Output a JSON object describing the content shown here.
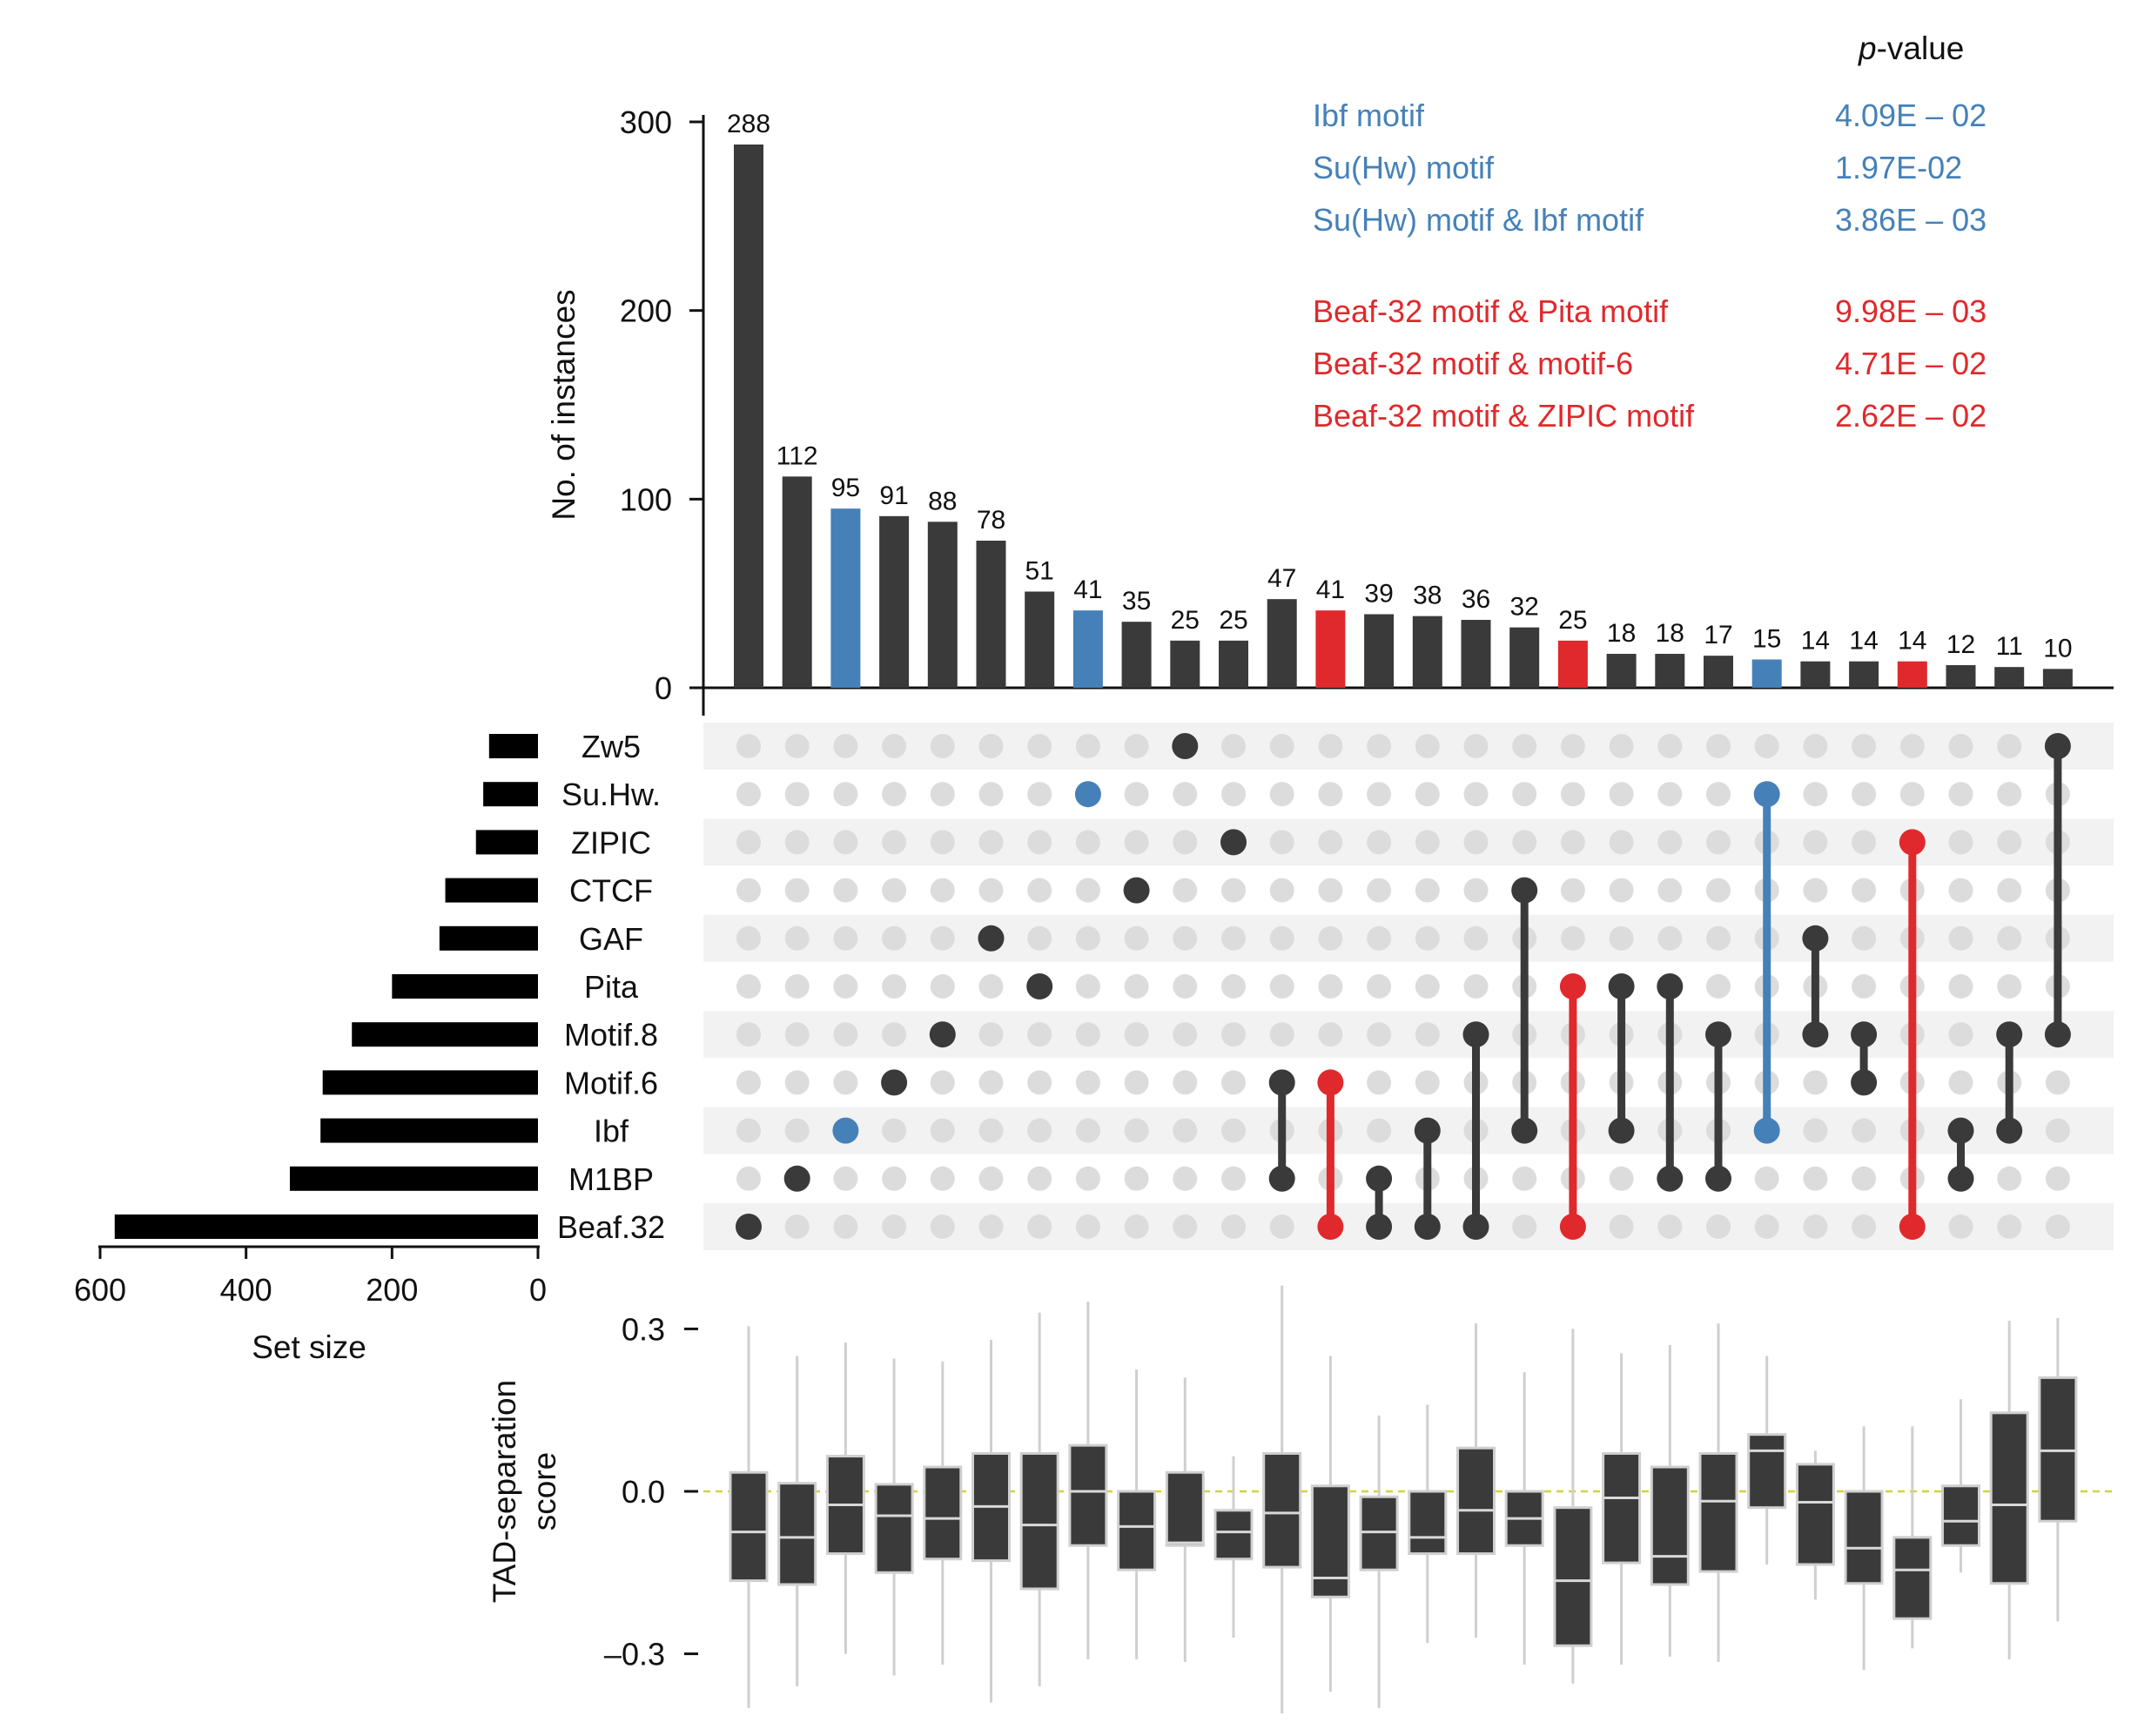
{
  "colors": {
    "dark": "#3a3a3a",
    "blue": "#4581b8",
    "red": "#e0292c",
    "dot_inactive": "#dcdcdc",
    "row_band": "#f2f2f2",
    "zero_line": "#cfd43a"
  },
  "pvalue_header": {
    "italic": "p",
    "rest": "-value"
  },
  "pvalue_table": [
    {
      "label": "Ibf motif",
      "value": "4.09E – 02",
      "color": "blue"
    },
    {
      "label": "Su(Hw) motif",
      "value": "1.97E-02",
      "color": "blue"
    },
    {
      "label": "Su(Hw) motif & Ibf motif",
      "value": "3.86E – 03",
      "color": "blue"
    },
    {
      "label": "Beaf-32 motif & Pita motif",
      "value": "9.98E – 03",
      "color": "red"
    },
    {
      "label": "Beaf-32 motif & motif-6",
      "value": "4.71E – 02",
      "color": "red"
    },
    {
      "label": "Beaf-32 motif & ZIPIC motif",
      "value": "2.62E – 02",
      "color": "red"
    }
  ],
  "chart_data": [
    {
      "type": "bar",
      "ylabel": "No. of instances",
      "ylim": [
        0,
        300
      ],
      "yticks": [
        "0",
        "100",
        "200",
        "300"
      ],
      "values": [
        288,
        112,
        95,
        91,
        88,
        78,
        51,
        41,
        35,
        25,
        25,
        47,
        41,
        39,
        38,
        36,
        32,
        25,
        18,
        18,
        17,
        15,
        14,
        14,
        14,
        12,
        11,
        10
      ],
      "labels": [
        "288",
        "112",
        "95",
        "91",
        "88",
        "78",
        "51",
        "41",
        "35",
        "25",
        "25",
        "47",
        "41",
        "39",
        "38",
        "36",
        "32",
        "25",
        "18",
        "18",
        "17",
        "15",
        "14",
        "14",
        "14",
        "12",
        "11",
        "10"
      ],
      "colors": [
        "dark",
        "dark",
        "blue",
        "dark",
        "dark",
        "dark",
        "dark",
        "blue",
        "dark",
        "dark",
        "dark",
        "dark",
        "red",
        "dark",
        "dark",
        "dark",
        "dark",
        "red",
        "dark",
        "dark",
        "dark",
        "blue",
        "dark",
        "dark",
        "red",
        "dark",
        "dark",
        "dark"
      ]
    },
    {
      "type": "upset_matrix",
      "sets": [
        "Zw5",
        "Su.Hw.",
        "ZIPIC",
        "CTCF",
        "GAF",
        "Pita",
        "Motif.8",
        "Motif.6",
        "Ibf",
        "M1BP",
        "Beaf.32"
      ],
      "intersections": [
        [
          "Beaf.32"
        ],
        [
          "M1BP"
        ],
        [
          "Ibf"
        ],
        [
          "Motif.6"
        ],
        [
          "Motif.8"
        ],
        [
          "GAF"
        ],
        [
          "Pita"
        ],
        [
          "Su.Hw."
        ],
        [
          "CTCF"
        ],
        [
          "Zw5"
        ],
        [
          "ZIPIC"
        ],
        [
          "Motif.6",
          "M1BP"
        ],
        [
          "Motif.6",
          "Beaf.32"
        ],
        [
          "M1BP",
          "Beaf.32"
        ],
        [
          "Ibf",
          "Beaf.32"
        ],
        [
          "Motif.8",
          "Beaf.32"
        ],
        [
          "CTCF",
          "Ibf"
        ],
        [
          "Pita",
          "Beaf.32"
        ],
        [
          "Pita",
          "Ibf"
        ],
        [
          "Pita",
          "M1BP"
        ],
        [
          "Motif.8",
          "M1BP"
        ],
        [
          "Su.Hw.",
          "Ibf"
        ],
        [
          "GAF",
          "Motif.8"
        ],
        [
          "Motif.8",
          "Motif.6"
        ],
        [
          "ZIPIC",
          "Beaf.32"
        ],
        [
          "Ibf",
          "M1BP"
        ],
        [
          "Motif.8",
          "Ibf"
        ],
        [
          "Zw5",
          "Motif.8"
        ]
      ]
    },
    {
      "type": "bar",
      "orientation": "horizontal",
      "xlabel": "Set size",
      "xlim": [
        600,
        0
      ],
      "xticks": [
        "600",
        "400",
        "200",
        "0"
      ],
      "categories": [
        "Zw5",
        "Su.Hw.",
        "ZIPIC",
        "CTCF",
        "GAF",
        "Pita",
        "Motif.8",
        "Motif.6",
        "Ibf",
        "M1BP",
        "Beaf.32"
      ],
      "values": [
        67,
        75,
        85,
        127,
        135,
        200,
        255,
        295,
        298,
        340,
        580
      ]
    },
    {
      "type": "box",
      "ylabel": "TAD-separation score",
      "ylim": [
        -0.37,
        0.35
      ],
      "yticks": [
        "0.3",
        "0.0",
        "–0.3"
      ],
      "reference_line": 0.0,
      "boxes": [
        {
          "q1": -0.165,
          "median": -0.075,
          "q3": 0.035,
          "whisker_low": -0.4,
          "whisker_high": 0.305
        },
        {
          "q1": -0.172,
          "median": -0.085,
          "q3": 0.015,
          "whisker_low": -0.36,
          "whisker_high": 0.25
        },
        {
          "q1": -0.115,
          "median": -0.025,
          "q3": 0.065,
          "whisker_low": -0.3,
          "whisker_high": 0.275
        },
        {
          "q1": -0.15,
          "median": -0.045,
          "q3": 0.013,
          "whisker_low": -0.34,
          "whisker_high": 0.245
        },
        {
          "q1": -0.125,
          "median": -0.05,
          "q3": 0.045,
          "whisker_low": -0.32,
          "whisker_high": 0.24
        },
        {
          "q1": -0.128,
          "median": -0.028,
          "q3": 0.07,
          "whisker_low": -0.39,
          "whisker_high": 0.28
        },
        {
          "q1": -0.18,
          "median": -0.062,
          "q3": 0.07,
          "whisker_low": -0.36,
          "whisker_high": 0.33
        },
        {
          "q1": -0.1,
          "median": 0.0,
          "q3": 0.085,
          "whisker_low": -0.31,
          "whisker_high": 0.35
        },
        {
          "q1": -0.145,
          "median": -0.065,
          "q3": 0.0,
          "whisker_low": -0.31,
          "whisker_high": 0.225
        },
        {
          "q1": -0.1,
          "median": -0.095,
          "q3": 0.035,
          "whisker_low": -0.315,
          "whisker_high": 0.21
        },
        {
          "q1": -0.125,
          "median": -0.075,
          "q3": -0.035,
          "whisker_low": -0.27,
          "whisker_high": 0.065
        },
        {
          "q1": -0.14,
          "median": -0.04,
          "q3": 0.07,
          "whisker_low": -0.41,
          "whisker_high": 0.38
        },
        {
          "q1": -0.195,
          "median": -0.16,
          "q3": 0.01,
          "whisker_low": -0.37,
          "whisker_high": 0.25
        },
        {
          "q1": -0.145,
          "median": -0.075,
          "q3": -0.01,
          "whisker_low": -0.4,
          "whisker_high": 0.14
        },
        {
          "q1": -0.115,
          "median": -0.085,
          "q3": 0.0,
          "whisker_low": -0.28,
          "whisker_high": 0.16
        },
        {
          "q1": -0.115,
          "median": -0.035,
          "q3": 0.08,
          "whisker_low": -0.27,
          "whisker_high": 0.31
        },
        {
          "q1": -0.1,
          "median": -0.05,
          "q3": 0.0,
          "whisker_low": -0.32,
          "whisker_high": 0.22
        },
        {
          "q1": -0.285,
          "median": -0.165,
          "q3": -0.03,
          "whisker_low": -0.355,
          "whisker_high": 0.3
        },
        {
          "q1": -0.132,
          "median": -0.012,
          "q3": 0.07,
          "whisker_low": -0.32,
          "whisker_high": 0.255
        },
        {
          "q1": -0.172,
          "median": -0.12,
          "q3": 0.045,
          "whisker_low": -0.305,
          "whisker_high": 0.27
        },
        {
          "q1": -0.148,
          "median": -0.018,
          "q3": 0.07,
          "whisker_low": -0.315,
          "whisker_high": 0.31
        },
        {
          "q1": -0.03,
          "median": 0.075,
          "q3": 0.105,
          "whisker_low": -0.135,
          "whisker_high": 0.25
        },
        {
          "q1": -0.135,
          "median": -0.02,
          "q3": 0.05,
          "whisker_low": -0.2,
          "whisker_high": 0.075
        },
        {
          "q1": -0.17,
          "median": -0.105,
          "q3": 0.0,
          "whisker_low": -0.33,
          "whisker_high": 0.12
        },
        {
          "q1": -0.235,
          "median": -0.145,
          "q3": -0.085,
          "whisker_low": -0.29,
          "whisker_high": 0.12
        },
        {
          "q1": -0.1,
          "median": -0.055,
          "q3": 0.01,
          "whisker_low": -0.15,
          "whisker_high": 0.17
        },
        {
          "q1": -0.17,
          "median": -0.025,
          "q3": 0.145,
          "whisker_low": -0.31,
          "whisker_high": 0.315
        },
        {
          "q1": -0.055,
          "median": 0.075,
          "q3": 0.21,
          "whisker_low": -0.24,
          "whisker_high": 0.32
        }
      ]
    }
  ]
}
